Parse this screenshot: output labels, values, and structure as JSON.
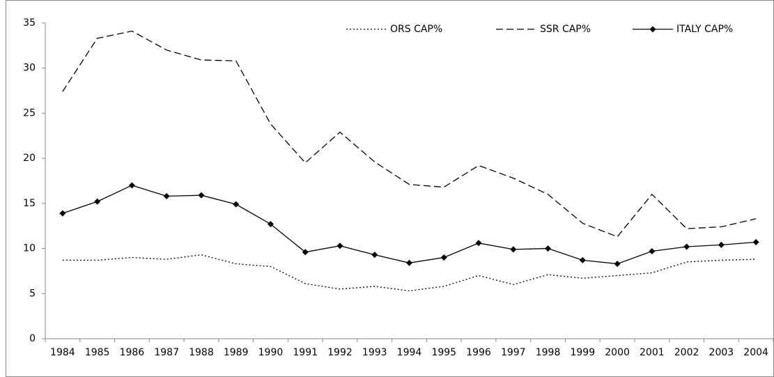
{
  "chart_data": {
    "type": "line",
    "categories": [
      "1984",
      "1985",
      "1986",
      "1987",
      "1988",
      "1989",
      "1990",
      "1991",
      "1992",
      "1993",
      "1994",
      "1995",
      "1996",
      "1997",
      "1998",
      "1999",
      "2000",
      "2001",
      "2002",
      "2003",
      "2004"
    ],
    "ylim": [
      0,
      35
    ],
    "yticks": [
      0,
      5,
      10,
      15,
      20,
      25,
      30,
      35
    ],
    "grid": false,
    "legend": "top-right",
    "series": [
      {
        "name": "ORS CAP%",
        "color": "#000000",
        "style": "dotted",
        "marker": "none",
        "values": [
          8.7,
          8.7,
          9.0,
          8.8,
          9.3,
          8.3,
          8.0,
          6.1,
          5.5,
          5.8,
          5.3,
          5.8,
          7.0,
          6.0,
          7.1,
          6.7,
          7.0,
          7.3,
          8.5,
          8.7,
          8.8
        ]
      },
      {
        "name": "SSR CAP%",
        "color": "#000000",
        "style": "dashed",
        "marker": "none",
        "values": [
          27.4,
          33.3,
          34.1,
          32.0,
          30.9,
          30.8,
          23.8,
          19.5,
          22.9,
          19.6,
          17.1,
          16.8,
          19.2,
          17.8,
          16.0,
          12.8,
          11.3,
          16.0,
          12.2,
          12.4,
          13.3
        ]
      },
      {
        "name": "ITALY CAP%",
        "color": "#000000",
        "style": "solid",
        "marker": "diamond",
        "values": [
          13.9,
          15.2,
          17.0,
          15.8,
          15.9,
          14.9,
          12.7,
          9.6,
          10.3,
          9.3,
          8.4,
          9.0,
          10.6,
          9.9,
          10.0,
          8.7,
          8.3,
          9.7,
          10.2,
          10.4,
          10.7
        ]
      }
    ]
  }
}
